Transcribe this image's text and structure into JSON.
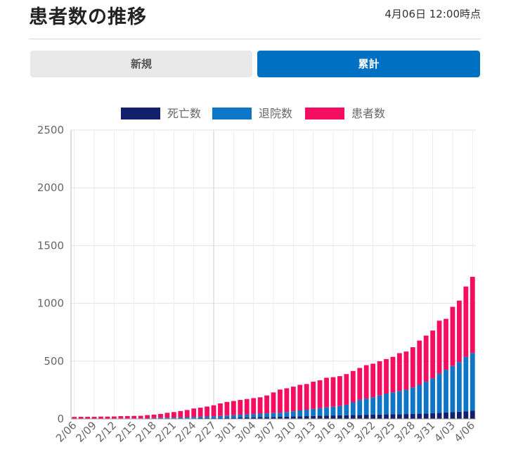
{
  "header": {
    "title": "患者数の推移",
    "timestamp": "4月06日 12:00時点"
  },
  "tabs": [
    {
      "label": "新規",
      "active": false
    },
    {
      "label": "累計",
      "active": true
    }
  ],
  "colors": {
    "deaths": "#12206b",
    "discharged": "#0f75c6",
    "patients": "#f50d5f",
    "active_tab": "#0071c2",
    "inactive_tab": "#e9e9e9"
  },
  "chart_data": {
    "type": "bar",
    "stacked": true,
    "legend_position": "top",
    "ylim": [
      0,
      2500
    ],
    "yticks": [
      0,
      500,
      1000,
      1500,
      2000,
      2500
    ],
    "grid": true,
    "categories": [
      "2/06",
      "2/07",
      "2/08",
      "2/09",
      "2/10",
      "2/11",
      "2/12",
      "2/13",
      "2/14",
      "2/15",
      "2/16",
      "2/17",
      "2/18",
      "2/19",
      "2/20",
      "2/21",
      "2/22",
      "2/23",
      "2/24",
      "2/25",
      "2/26",
      "2/27",
      "2/28",
      "2/29",
      "3/01",
      "3/02",
      "3/03",
      "3/04",
      "3/05",
      "3/06",
      "3/07",
      "3/08",
      "3/09",
      "3/10",
      "3/11",
      "3/12",
      "3/13",
      "3/14",
      "3/15",
      "3/16",
      "3/17",
      "3/18",
      "3/19",
      "3/20",
      "3/21",
      "3/22",
      "3/23",
      "3/24",
      "3/25",
      "3/26",
      "3/27",
      "3/28",
      "3/29",
      "3/30",
      "3/31",
      "4/01",
      "4/02",
      "4/03",
      "4/04",
      "4/05",
      "4/06"
    ],
    "x_tick_labels": [
      "2/06",
      "2/09",
      "2/12",
      "2/15",
      "2/18",
      "2/21",
      "2/24",
      "2/27",
      "3/01",
      "3/04",
      "3/07",
      "3/10",
      "3/13",
      "3/16",
      "3/19",
      "3/22",
      "3/25",
      "3/28",
      "3/31",
      "4/03",
      "4/06"
    ],
    "series": [
      {
        "name": "死亡数",
        "values": [
          0,
          0,
          0,
          0,
          0,
          0,
          0,
          1,
          1,
          1,
          1,
          1,
          1,
          1,
          2,
          2,
          3,
          4,
          5,
          6,
          6,
          7,
          8,
          9,
          10,
          12,
          13,
          14,
          15,
          16,
          17,
          18,
          20,
          21,
          23,
          24,
          26,
          27,
          29,
          30,
          31,
          32,
          33,
          35,
          36,
          37,
          38,
          39,
          40,
          41,
          42,
          43,
          45,
          47,
          49,
          52,
          55,
          58,
          62,
          66,
          70
        ]
      },
      {
        "name": "退院数",
        "values": [
          1,
          1,
          1,
          1,
          2,
          2,
          2,
          3,
          3,
          4,
          4,
          5,
          6,
          7,
          8,
          9,
          10,
          11,
          12,
          13,
          15,
          16,
          18,
          20,
          22,
          24,
          26,
          28,
          30,
          32,
          34,
          36,
          40,
          45,
          50,
          55,
          60,
          65,
          70,
          75,
          80,
          90,
          110,
          130,
          140,
          150,
          165,
          180,
          190,
          200,
          210,
          230,
          250,
          275,
          300,
          340,
          370,
          400,
          430,
          470,
          500
        ]
      },
      {
        "name": "患者数",
        "values": [
          16,
          17,
          17,
          17,
          18,
          18,
          19,
          20,
          21,
          21,
          22,
          27,
          30,
          35,
          43,
          48,
          55,
          62,
          73,
          78,
          86,
          95,
          108,
          118,
          123,
          128,
          133,
          138,
          142,
          155,
          178,
          200,
          205,
          213,
          222,
          223,
          236,
          242,
          257,
          256,
          259,
          266,
          272,
          276,
          289,
          291,
          296,
          299,
          307,
          328,
          331,
          347,
          383,
          399,
          416,
          458,
          441,
          512,
          532,
          610,
          660
        ]
      }
    ]
  }
}
